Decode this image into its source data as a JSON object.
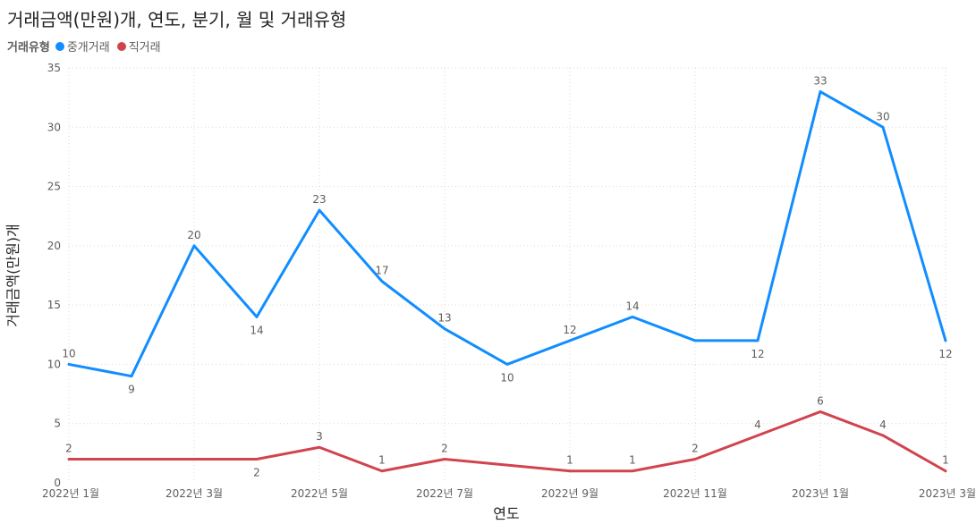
{
  "title": "거래금액(만원)개, 연도, 분기, 월 및 거래유형",
  "legend": {
    "title": "거래유형",
    "items": [
      {
        "label": "중개거래",
        "color": "#118DFF"
      },
      {
        "label": "직거래",
        "color": "#D1444E"
      }
    ]
  },
  "chart_data": {
    "type": "line",
    "title": "거래금액(만원)개, 연도, 분기, 월 및 거래유형",
    "xlabel": "연도",
    "ylabel": "거래금액(만원)개",
    "ylim": [
      0,
      35
    ],
    "yticks": [
      0,
      5,
      10,
      15,
      20,
      25,
      30,
      35
    ],
    "x": [
      "2022년 1월",
      "2022년 2월",
      "2022년 3월",
      "2022년 4월",
      "2022년 5월",
      "2022년 6월",
      "2022년 7월",
      "2022년 8월",
      "2022년 9월",
      "2022년 10월",
      "2022년 11월",
      "2022년 12월",
      "2023년 1월",
      "2023년 2월",
      "2023년 3월"
    ],
    "xticks": [
      "2022년 1월",
      "2022년 3월",
      "2022년 5월",
      "2022년 7월",
      "2022년 9월",
      "2022년 11월",
      "2023년 1월",
      "2023년 3월"
    ],
    "grid": true,
    "legend_position": "top-left",
    "series": [
      {
        "name": "중개거래",
        "color": "#118DFF",
        "values": [
          10,
          9,
          20,
          14,
          23,
          17,
          13,
          10,
          12,
          14,
          12,
          12,
          33,
          30,
          12
        ],
        "data_labels": [
          10,
          9,
          20,
          14,
          23,
          17,
          13,
          10,
          12,
          14,
          null,
          12,
          33,
          30,
          12
        ],
        "label_below": [
          false,
          true,
          false,
          true,
          false,
          false,
          false,
          true,
          false,
          false,
          false,
          true,
          false,
          false,
          true
        ]
      },
      {
        "name": "직거래",
        "color": "#D1444E",
        "values": [
          2,
          2,
          2,
          2,
          3,
          1,
          2,
          1.5,
          1,
          1,
          2,
          4,
          6,
          4,
          1
        ],
        "data_labels": [
          2,
          null,
          null,
          2,
          3,
          1,
          2,
          null,
          1,
          1,
          2,
          4,
          6,
          4,
          1
        ],
        "label_below": [
          false,
          false,
          false,
          true,
          false,
          false,
          false,
          false,
          false,
          false,
          false,
          false,
          false,
          false,
          false
        ]
      }
    ]
  }
}
